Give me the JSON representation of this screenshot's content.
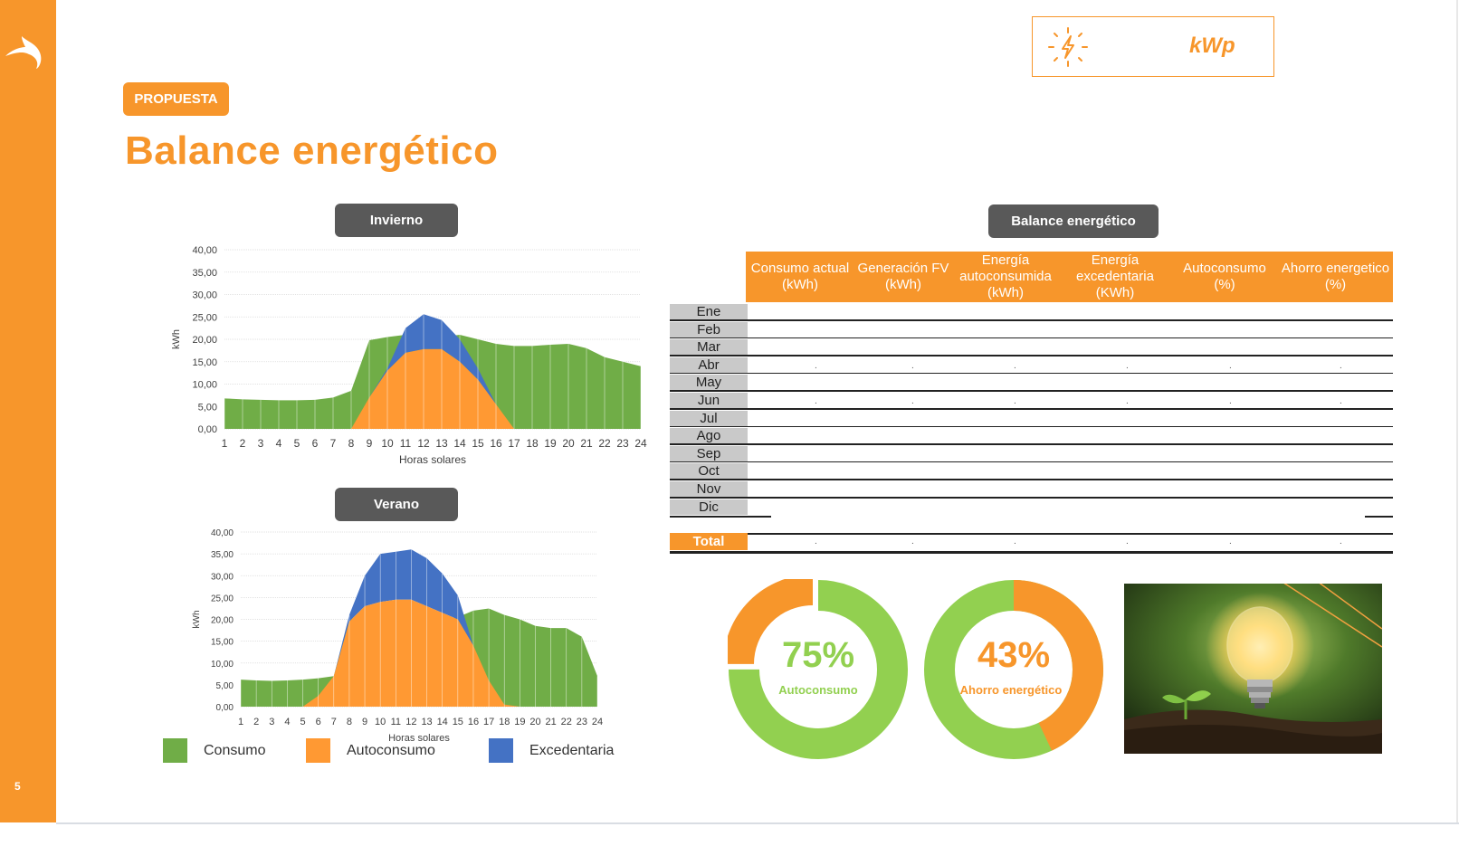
{
  "page": {
    "number": "5"
  },
  "header": {
    "badge": "PROPUESTA",
    "title": "Balance energético",
    "kwp_label": "kWp"
  },
  "sections": {
    "winter_title": "Invierno",
    "summer_title": "Verano",
    "balance_title": "Balance energético"
  },
  "colors": {
    "accent": "#f7962b",
    "consumo": "#70ad47",
    "autoconsumo": "#ff9933",
    "excedentaria": "#4472c4",
    "pill": "#595959",
    "donut_green": "#92d050"
  },
  "legend": [
    {
      "label": "Consumo",
      "color": "#70ad47"
    },
    {
      "label": "Autoconsumo",
      "color": "#ff9933"
    },
    {
      "label": "Excedentaria",
      "color": "#4472c4"
    }
  ],
  "chart_data": [
    {
      "type": "area",
      "title": "Invierno",
      "xlabel": "Horas solares",
      "ylabel": "kWh",
      "ylim": [
        0,
        40
      ],
      "yticks": [
        "0,00",
        "5,00",
        "10,00",
        "15,00",
        "20,00",
        "25,00",
        "30,00",
        "35,00",
        "40,00"
      ],
      "x": [
        1,
        2,
        3,
        4,
        5,
        6,
        7,
        8,
        9,
        10,
        11,
        12,
        13,
        14,
        15,
        16,
        17,
        18,
        19,
        20,
        21,
        22,
        23,
        24
      ],
      "series": [
        {
          "name": "Consumo",
          "values": [
            6.8,
            6.6,
            6.5,
            6.4,
            6.4,
            6.5,
            7.0,
            8.5,
            19.8,
            20.5,
            21.0,
            20.0,
            20.5,
            21.0,
            20.0,
            19.0,
            18.5,
            18.5,
            18.8,
            19.0,
            18.0,
            16.0,
            15.0,
            14.0
          ]
        },
        {
          "name": "Autoconsumo",
          "values": [
            0,
            0,
            0,
            0,
            0,
            0,
            0,
            0,
            7.0,
            13.0,
            17.0,
            17.8,
            17.8,
            15.0,
            11.0,
            5.5,
            0,
            0,
            0,
            0,
            0,
            0,
            0,
            0
          ]
        },
        {
          "name": "Excedentaria",
          "values": [
            0,
            0,
            0,
            0,
            0,
            0,
            0,
            0,
            0,
            0.5,
            5.5,
            7.8,
            6.5,
            5.0,
            2.5,
            0,
            0,
            0,
            0,
            0,
            0,
            0,
            0,
            0
          ]
        }
      ]
    },
    {
      "type": "area",
      "title": "Verano",
      "xlabel": "Horas solares",
      "ylabel": "kWh",
      "ylim": [
        0,
        40
      ],
      "yticks": [
        "0,00",
        "5,00",
        "10,00",
        "15,00",
        "20,00",
        "25,00",
        "30,00",
        "35,00",
        "40,00"
      ],
      "x": [
        1,
        2,
        3,
        4,
        5,
        6,
        7,
        8,
        9,
        10,
        11,
        12,
        13,
        14,
        15,
        16,
        17,
        18,
        19,
        20,
        21,
        22,
        23,
        24
      ],
      "series": [
        {
          "name": "Consumo",
          "values": [
            6.2,
            6.0,
            5.9,
            6.0,
            6.2,
            6.5,
            7.0,
            20.0,
            21.0,
            22.0,
            22.5,
            22.0,
            21.0,
            20.0,
            20.5,
            22.0,
            22.5,
            21.0,
            20.0,
            18.5,
            18.0,
            18.0,
            16.0,
            7.0
          ]
        },
        {
          "name": "Autoconsumo",
          "values": [
            0,
            0,
            0,
            0,
            0,
            2.5,
            7.0,
            19.5,
            23.0,
            24.0,
            24.5,
            24.5,
            23.0,
            21.5,
            20.0,
            14.0,
            6.0,
            0.5,
            0,
            0,
            0,
            0,
            0,
            0
          ]
        },
        {
          "name": "Excedentaria",
          "values": [
            0,
            0,
            0,
            0,
            0,
            0,
            0,
            1.5,
            7.0,
            11.0,
            11.0,
            11.5,
            11.0,
            9.0,
            5.5,
            0,
            0,
            0,
            0,
            0,
            0,
            0,
            0,
            0
          ]
        }
      ]
    },
    {
      "type": "table",
      "title": "Balance energético",
      "columns": [
        "Consumo actual (kWh)",
        "Generación FV (kWh)",
        "Energía autoconsumida (kWh)",
        "Energía excedentaria (KWh)",
        "Autoconsumo (%)",
        "Ahorro energetico (%)"
      ],
      "rows": [
        "Ene",
        "Feb",
        "Mar",
        "Abr",
        "May",
        "Jun",
        "Jul",
        "Ago",
        "Sep",
        "Oct",
        "Nov",
        "Dic"
      ],
      "total_label": "Total"
    },
    {
      "type": "pie",
      "label": "Autoconsumo",
      "value_text": "75%",
      "values": [
        75,
        25
      ]
    },
    {
      "type": "pie",
      "label": "Ahorro energético",
      "value_text": "43%",
      "values": [
        43,
        57
      ]
    }
  ]
}
